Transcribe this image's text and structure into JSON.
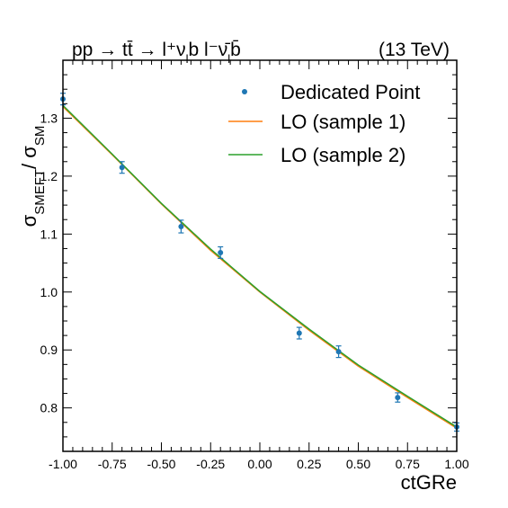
{
  "chart_data": {
    "type": "line",
    "title_left": "pp → tt̄ → l⁺ν",
    "title_left_sub1": "l",
    "title_left_mid": "b  l⁻ν̄",
    "title_left_sub2": "l",
    "title_left_end": "b̄",
    "title_right": "(13 TeV)",
    "xlabel": "ctGRe",
    "ylabel_main": "σ",
    "ylabel_sub1": "SMEFT",
    "ylabel_mid": "/ σ",
    "ylabel_sub2": "SM",
    "xlim": [
      -1.0,
      1.0
    ],
    "ylim": [
      0.725,
      1.4
    ],
    "xticks": [
      -1.0,
      -0.75,
      -0.5,
      -0.25,
      0.0,
      0.25,
      0.5,
      0.75,
      1.0
    ],
    "xtick_labels": [
      "-1.00",
      "-0.75",
      "-0.50",
      "-0.25",
      "0.00",
      "0.25",
      "0.50",
      "0.75",
      "1.00"
    ],
    "yticks": [
      0.8,
      0.9,
      1.0,
      1.1,
      1.2,
      1.3
    ],
    "ytick_labels": [
      "0.8",
      "0.9",
      "1.0",
      "1.1",
      "1.2",
      "1.3"
    ],
    "legend_position": "top-right",
    "points": {
      "name": "Dedicated Point",
      "color": "#1f77b4",
      "x": [
        -1.0,
        -0.7,
        -0.4,
        -0.2,
        0.2,
        0.4,
        0.7,
        1.0
      ],
      "y": [
        1.333,
        1.215,
        1.113,
        1.068,
        0.929,
        0.897,
        0.818,
        0.767
      ],
      "err": [
        0.01,
        0.01,
        0.011,
        0.01,
        0.01,
        0.01,
        0.008,
        0.007
      ]
    },
    "series": [
      {
        "name": "LO (sample 1)",
        "color": "#ff7f0e",
        "x": [
          -1.0,
          -0.75,
          -0.5,
          -0.25,
          0.0,
          0.25,
          0.5,
          0.75,
          1.0
        ],
        "y": [
          1.32,
          1.237,
          1.152,
          1.072,
          1.0,
          0.934,
          0.872,
          0.818,
          0.765
        ]
      },
      {
        "name": "LO (sample 2)",
        "color": "#2ca02c",
        "x": [
          -1.0,
          -0.75,
          -0.5,
          -0.25,
          0.0,
          0.25,
          0.5,
          0.75,
          1.0
        ],
        "y": [
          1.322,
          1.238,
          1.153,
          1.074,
          1.001,
          0.936,
          0.874,
          0.82,
          0.767
        ]
      }
    ]
  }
}
